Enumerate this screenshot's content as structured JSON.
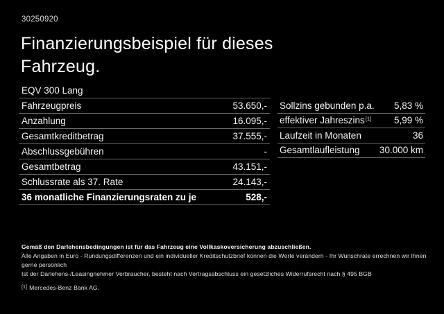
{
  "page": {
    "document_number": "30250920",
    "title": "Finanzierungsbeispiel für dieses Fahrzeug."
  },
  "left_table": {
    "header": "EQV 300 Lang",
    "rows": [
      {
        "label": "Fahrzeugpreis",
        "value": "53.650,-"
      },
      {
        "label": "Anzahlung",
        "value": "16.095,-"
      },
      {
        "label": "Gesamtkreditbetrag",
        "value": "37.555,-"
      },
      {
        "label": "Abschlussgebühren",
        "value": "-"
      },
      {
        "label": "Gesamtbetrag",
        "value": "43.151,-"
      },
      {
        "label": "Schlussrate als 37. Rate",
        "value": "24.143,-"
      },
      {
        "label": "36 monatliche Finanzierungsraten zu je",
        "value": "528,-"
      }
    ]
  },
  "right_table": {
    "rows": [
      {
        "label": "Sollzins gebunden p.a.",
        "value": "5,83 %"
      },
      {
        "label": "effektiver Jahreszins",
        "sup": "[1]",
        "value": "5,99 %"
      },
      {
        "label": "Laufzeit in Monaten",
        "value": "36"
      },
      {
        "label": "Gesamtlaufleistung",
        "value": "30.000 km"
      }
    ]
  },
  "footer": {
    "bold_note": "Gemäß den Darlehensbedingungen ist für das Fahrzeug eine Vollkaskoversicherung abzuschließen.",
    "note_line2": "Alle Angaben in Euro - Rundungsdifferenzen und ein individueller Kreditschutzbrief können die Werte verändern - Ihr Wunschrate errechnen wir Ihnen gerne persönlich",
    "note_line3": "Ist der Darlehens-/Leasingnehmer Verbraucher, besteht nach Vertragsabschluss ein gesetzliches Widerrufsrecht nach § 495 BGB",
    "footnote_marker": "[1]",
    "footnote_text": "Mercedes-Benz Bank AG."
  },
  "colors": {
    "background": "#000000",
    "text": "#f5f5f5",
    "separator": "#6b6b6b"
  }
}
